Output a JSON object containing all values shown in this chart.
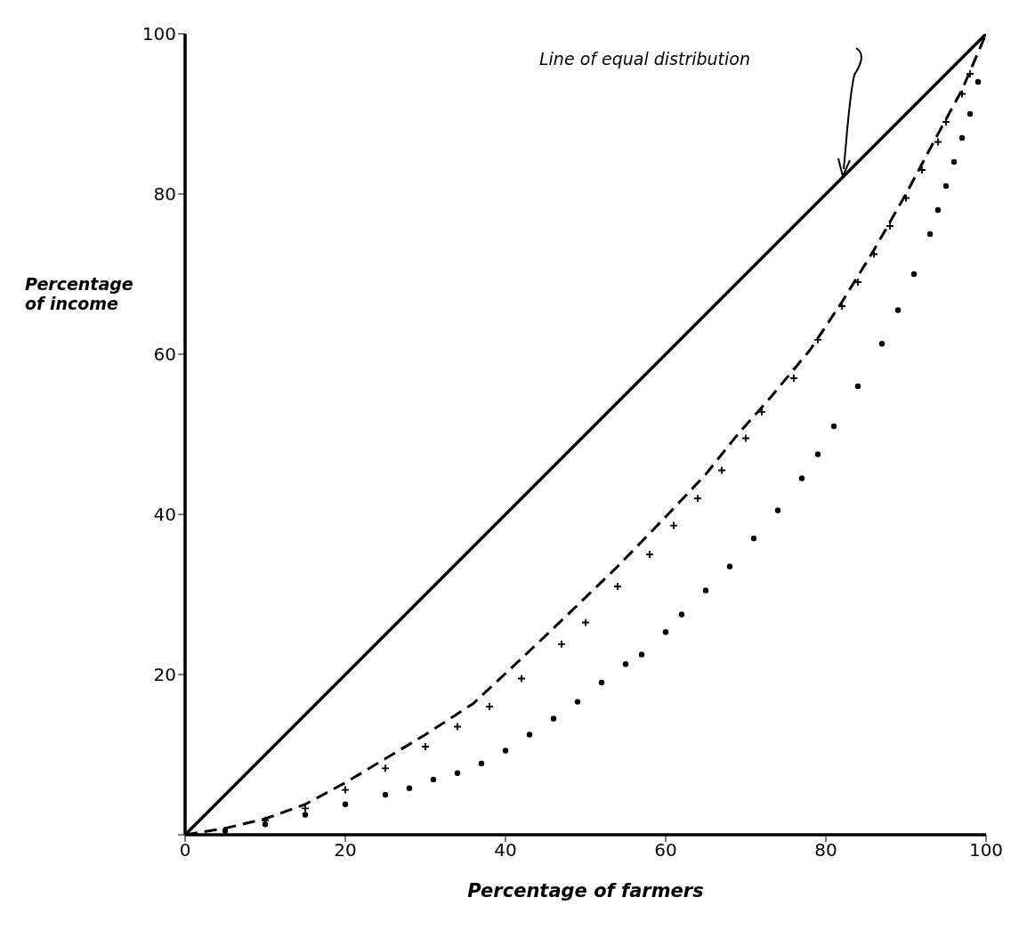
{
  "chart_data": {
    "type": "line",
    "xlabel": "Percentage of farmers",
    "ylabel": "Percentage of income",
    "annotations": [
      "Line of equal distribution"
    ],
    "xlim": [
      0,
      100
    ],
    "ylim": [
      0,
      100
    ],
    "xticks": [
      0,
      20,
      40,
      60,
      80,
      100
    ],
    "yticks": [
      {
        "value": 0,
        "label": null
      },
      20,
      40,
      60,
      80,
      100
    ],
    "grid": false,
    "legend": false,
    "series": [
      {
        "color": "#000000",
        "line_style": "solid",
        "marker": "none",
        "x": [
          0,
          100
        ],
        "values": [
          0,
          100
        ]
      },
      {
        "color": "#000000",
        "line_style": "dashed",
        "marker": "none",
        "x": [
          0,
          5,
          10,
          15,
          20,
          25,
          30,
          36,
          42,
          48,
          54,
          60,
          65,
          69,
          73,
          78,
          82,
          86,
          90,
          94,
          97,
          100
        ],
        "values": [
          0,
          0.8,
          2,
          3.8,
          6.5,
          9.5,
          12.5,
          16.4,
          22,
          27.7,
          33.5,
          39.7,
          45,
          50,
          54.5,
          60.5,
          66.5,
          73,
          80,
          87.5,
          93,
          100
        ]
      },
      {
        "type": "scatter",
        "color": "#000000",
        "marker": "cross",
        "x": [
          10,
          15,
          20,
          25,
          30,
          34,
          38,
          42,
          47,
          50,
          54,
          58,
          61,
          64,
          67,
          70,
          72,
          76,
          79,
          82,
          84,
          86,
          88,
          90,
          92,
          94,
          95,
          97,
          98
        ],
        "values": [
          1.8,
          3.3,
          5.6,
          8.3,
          11,
          13.5,
          16,
          19.5,
          23.8,
          26.5,
          31,
          35,
          38.6,
          42,
          45.5,
          49.5,
          52.8,
          57,
          61.8,
          66,
          69,
          72.5,
          76,
          79.5,
          83,
          86.5,
          89,
          92.5,
          95
        ]
      },
      {
        "type": "scatter",
        "color": "#000000",
        "marker": "circle",
        "x": [
          5,
          10,
          15,
          20,
          25,
          28,
          31,
          34,
          37,
          40,
          43,
          46,
          49,
          52,
          55,
          57,
          60,
          62,
          65,
          68,
          71,
          74,
          77,
          79,
          81,
          84,
          87,
          89,
          91,
          93,
          94,
          95,
          96,
          97,
          98,
          99
        ],
        "values": [
          0.5,
          1.3,
          2.5,
          3.8,
          5,
          5.8,
          6.9,
          7.7,
          8.9,
          10.5,
          12.5,
          14.5,
          16.6,
          19,
          21.3,
          22.5,
          25.3,
          27.5,
          30.5,
          33.5,
          37,
          40.5,
          44.5,
          47.5,
          51,
          56,
          61.3,
          65.5,
          70,
          75,
          78,
          81,
          84,
          87,
          90,
          94
        ]
      }
    ]
  }
}
